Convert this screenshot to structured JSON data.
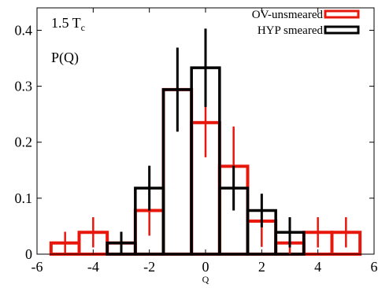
{
  "chart_data": {
    "type": "histogram",
    "title": "",
    "annotations": {
      "temperature": "1.5 T",
      "temperature_sub": "c",
      "prob_label": "P(Q)"
    },
    "xlabel": "Q",
    "ylabel": "",
    "xlim": [
      -6,
      6
    ],
    "ylim": [
      0,
      0.44
    ],
    "xticks": [
      -6,
      -4,
      -2,
      0,
      2,
      4,
      6
    ],
    "yticks": [
      0,
      0.1,
      0.2,
      0.3,
      0.4
    ],
    "ytick_labels": [
      "0",
      "0.1",
      "0.2",
      "0.3",
      "0.4"
    ],
    "grid": false,
    "legend_position": "top-right",
    "series": [
      {
        "name": "OV-unsmeared",
        "color": "#e8170c",
        "bins": [
          {
            "x": -5,
            "y": 0.02,
            "err": 0.02
          },
          {
            "x": -4,
            "y": 0.039,
            "err": 0.027
          },
          {
            "x": -3,
            "y": 0.02,
            "err": 0.02
          },
          {
            "x": -2,
            "y": 0.078,
            "err": 0.045
          },
          {
            "x": -1,
            "y": 0.294,
            "err": 0.075
          },
          {
            "x": 0,
            "y": 0.235,
            "err": 0.062
          },
          {
            "x": 1,
            "y": 0.157,
            "err": 0.071
          },
          {
            "x": 2,
            "y": 0.059,
            "err": 0.046
          },
          {
            "x": 3,
            "y": 0.02,
            "err": 0.02
          },
          {
            "x": 4,
            "y": 0.039,
            "err": 0.027
          },
          {
            "x": 5,
            "y": 0.039,
            "err": 0.027
          }
        ]
      },
      {
        "name": "HYP smeared",
        "color": "#000000",
        "bins": [
          {
            "x": -3,
            "y": 0.02,
            "err": 0.02
          },
          {
            "x": -2,
            "y": 0.118,
            "err": 0.04
          },
          {
            "x": -1,
            "y": 0.294,
            "err": 0.075
          },
          {
            "x": 0,
            "y": 0.333,
            "err": 0.07
          },
          {
            "x": 1,
            "y": 0.118,
            "err": 0.04
          },
          {
            "x": 2,
            "y": 0.078,
            "err": 0.03
          },
          {
            "x": 3,
            "y": 0.039,
            "err": 0.027
          }
        ]
      }
    ]
  }
}
